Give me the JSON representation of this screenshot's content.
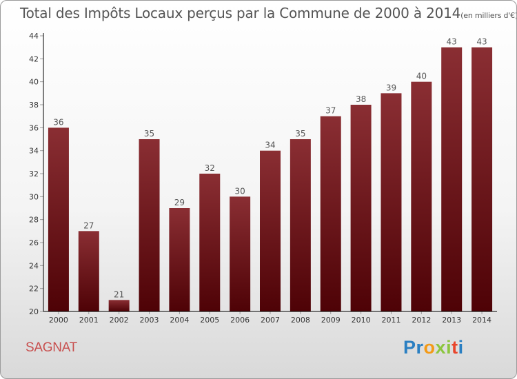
{
  "header": {
    "title": "Total des Impôts Locaux perçus par la Commune de 2000 à 2014",
    "unit": "(en milliers d'€)"
  },
  "footer": {
    "commune": "SAGNAT",
    "logo_letters": [
      "P",
      "r",
      "o",
      "x",
      "i",
      "t",
      "i"
    ],
    "logo_colors": [
      "#2a7fc2",
      "#2a7fc2",
      "#f39a17",
      "#8cc63f",
      "#8cc63f",
      "#e8452c",
      "#2a7fc2"
    ]
  },
  "colors": {
    "bar_top": "#8a2e33",
    "bar_bottom": "#4e0206",
    "axis": "#000000",
    "grid_tick": "#9a9a9a",
    "text": "#555555",
    "commune": "#c8504f"
  },
  "chart_data": {
    "type": "bar",
    "categories": [
      "2000",
      "2001",
      "2002",
      "2003",
      "2004",
      "2005",
      "2006",
      "2007",
      "2008",
      "2009",
      "2010",
      "2011",
      "2012",
      "2013",
      "2014"
    ],
    "values": [
      36,
      27,
      21,
      35,
      29,
      32,
      30,
      34,
      35,
      37,
      38,
      39,
      40,
      43,
      43
    ],
    "ylim": [
      20,
      44
    ],
    "yticks": [
      20,
      22,
      24,
      26,
      28,
      30,
      32,
      34,
      36,
      38,
      40,
      42,
      44
    ],
    "grid": false,
    "data_labels": true
  }
}
